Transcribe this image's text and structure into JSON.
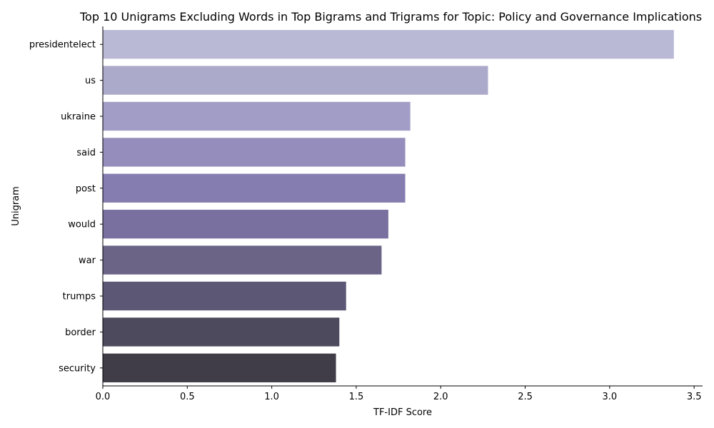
{
  "chart_data": {
    "type": "bar",
    "orientation": "horizontal",
    "title": "Top 10 Unigrams Excluding Words in Top Bigrams and Trigrams for Topic: Policy and Governance Implications",
    "xlabel": "TF-IDF Score",
    "ylabel": "Unigram",
    "categories": [
      "presidentelect",
      "us",
      "ukraine",
      "said",
      "post",
      "would",
      "war",
      "trumps",
      "border",
      "security"
    ],
    "values": [
      3.38,
      2.28,
      1.82,
      1.79,
      1.79,
      1.69,
      1.65,
      1.44,
      1.4,
      1.38
    ],
    "xlim": [
      0,
      3.55
    ],
    "xticks": [
      0.0,
      0.5,
      1.0,
      1.5,
      2.0,
      2.5,
      3.0,
      3.5
    ],
    "xtick_labels": [
      "0.0",
      "0.5",
      "1.0",
      "1.5",
      "2.0",
      "2.5",
      "3.0",
      "3.5"
    ],
    "grid": false,
    "legend": false,
    "colors": [
      "#b9b9d6",
      "#acaacb",
      "#a19dc7",
      "#958dbb",
      "#857db0",
      "#7a70a0",
      "#6b6487",
      "#5c5774",
      "#4d4a5e",
      "#403d48"
    ]
  }
}
